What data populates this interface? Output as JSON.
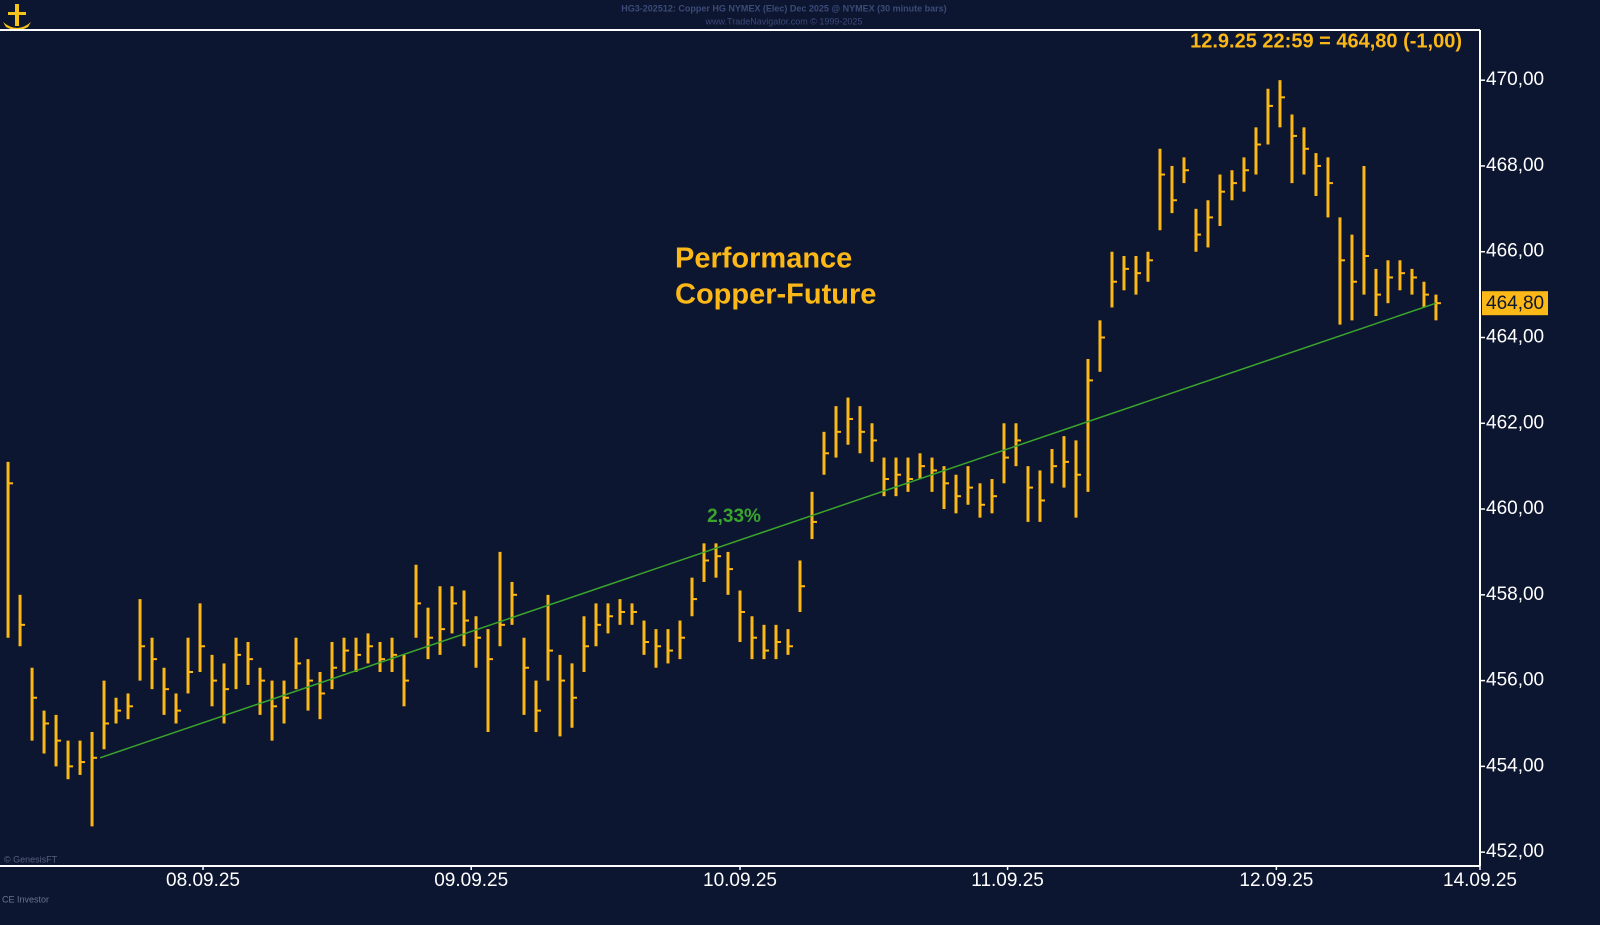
{
  "chart_data": {
    "type": "hlc",
    "header": [
      "HG3-202512:  Copper HG NYMEX (Elec) Dec 2025 @ NYMEX  (30 minute bars)",
      "www.TradeNavigator.com © 1999-2025"
    ],
    "readout": "12.9.25 22:59 = 464,80 (-1,00)",
    "title": [
      "Performance",
      "Copper-Future"
    ],
    "credits": [
      "© GenesisFT",
      "CE Investor"
    ],
    "color": "#fbb817",
    "high": [
      461.1,
      458.0,
      456.3,
      455.3,
      455.2,
      454.6,
      454.6,
      454.8,
      456.0,
      455.6,
      455.7,
      457.9,
      457.0,
      456.3,
      455.7,
      457.0,
      457.8,
      456.6,
      456.4,
      457.0,
      456.9,
      456.3,
      456.0,
      456.0,
      457.0,
      456.5,
      456.2,
      456.9,
      457.0,
      457.0,
      457.1,
      456.9,
      457.0,
      456.6,
      458.7,
      457.7,
      458.2,
      458.2,
      458.1,
      457.5,
      457.2,
      459.0,
      458.3,
      457.0,
      456.0,
      458.0,
      456.6,
      456.4,
      457.5,
      457.8,
      457.8,
      457.9,
      457.8,
      457.4,
      457.2,
      457.2,
      457.4,
      458.4,
      459.2,
      459.2,
      459.0,
      458.1,
      457.5,
      457.3,
      457.3,
      457.2,
      458.8,
      460.4,
      461.8,
      462.4,
      462.6,
      462.4,
      462.0,
      461.2,
      461.2,
      461.2,
      461.3,
      461.2,
      461.0,
      460.8,
      461.0,
      460.6,
      460.7,
      462.0,
      462.0,
      461.0,
      460.9,
      461.4,
      461.7,
      461.6,
      463.5,
      464.4,
      466.0,
      465.9,
      465.9,
      466.0,
      468.4,
      468.0,
      468.2,
      467.0,
      467.2,
      467.8,
      467.9,
      468.2,
      468.9,
      469.8,
      470.0,
      469.2,
      468.9,
      468.3,
      468.2,
      466.8,
      466.4,
      468.0,
      465.6,
      465.8,
      465.8,
      465.6,
      465.3,
      465.0
    ],
    "low": [
      457.0,
      456.8,
      454.6,
      454.3,
      454.0,
      453.7,
      453.8,
      452.6,
      454.4,
      455.0,
      455.1,
      456.0,
      455.8,
      455.2,
      455.0,
      455.7,
      456.2,
      455.4,
      455.0,
      455.8,
      455.9,
      455.2,
      454.6,
      455.0,
      455.8,
      455.3,
      455.1,
      455.8,
      456.2,
      456.2,
      456.4,
      456.2,
      456.2,
      455.4,
      457.0,
      456.5,
      456.6,
      457.1,
      456.8,
      456.3,
      454.8,
      456.8,
      457.3,
      455.2,
      454.8,
      456.0,
      454.7,
      454.9,
      456.2,
      456.8,
      457.1,
      457.3,
      457.3,
      456.6,
      456.3,
      456.4,
      456.5,
      457.5,
      458.3,
      458.4,
      458.0,
      456.9,
      456.5,
      456.5,
      456.5,
      456.6,
      457.6,
      459.3,
      460.8,
      461.2,
      461.5,
      461.3,
      461.1,
      460.3,
      460.3,
      460.4,
      460.7,
      460.4,
      460.0,
      459.9,
      460.1,
      459.8,
      459.9,
      460.6,
      461.0,
      459.7,
      459.7,
      460.6,
      460.5,
      459.8,
      460.4,
      463.2,
      464.7,
      465.1,
      465.0,
      465.3,
      466.5,
      466.9,
      467.6,
      466.0,
      466.1,
      466.6,
      467.2,
      467.4,
      467.8,
      468.5,
      468.9,
      467.6,
      467.8,
      467.3,
      466.8,
      464.3,
      464.4,
      465.0,
      464.5,
      464.8,
      465.1,
      465.0,
      464.7,
      464.4
    ],
    "close": [
      460.6,
      457.3,
      455.6,
      455.0,
      454.6,
      454.0,
      454.1,
      454.2,
      455.0,
      455.3,
      455.4,
      456.8,
      456.5,
      455.8,
      455.3,
      456.2,
      456.8,
      456.0,
      455.8,
      456.6,
      456.5,
      456.0,
      455.4,
      455.6,
      456.4,
      456.0,
      455.7,
      456.3,
      456.7,
      456.6,
      456.8,
      456.5,
      456.6,
      456.0,
      457.8,
      457.0,
      457.2,
      457.8,
      457.4,
      457.0,
      456.5,
      457.3,
      458.0,
      456.3,
      455.3,
      456.7,
      456.0,
      455.6,
      456.8,
      457.3,
      457.5,
      457.6,
      457.6,
      456.9,
      456.8,
      456.7,
      457.0,
      457.9,
      458.8,
      458.9,
      458.6,
      457.6,
      457.0,
      456.7,
      456.9,
      456.8,
      458.2,
      459.7,
      461.3,
      461.8,
      462.1,
      461.8,
      461.6,
      460.7,
      460.8,
      460.7,
      461.0,
      460.9,
      460.6,
      460.3,
      460.5,
      460.1,
      460.3,
      461.2,
      461.6,
      460.5,
      460.2,
      461.0,
      461.1,
      460.8,
      463.0,
      464.0,
      465.3,
      465.6,
      465.5,
      465.8,
      467.8,
      467.2,
      467.9,
      466.4,
      466.8,
      467.4,
      467.6,
      467.9,
      468.5,
      469.4,
      469.6,
      468.7,
      468.4,
      468.0,
      467.6,
      465.8,
      465.3,
      465.9,
      465.0,
      465.4,
      465.5,
      465.4,
      465.0,
      464.8
    ],
    "trend_line": {
      "label": "2,33%",
      "start": 454.2,
      "end": 464.8,
      "color": "#3aa52c"
    },
    "last_price": {
      "value": 464.8,
      "label": "464,80"
    },
    "ylim": [
      451.7,
      471.17
    ],
    "yticks": [
      {
        "value": 452,
        "label": "452,00"
      },
      {
        "value": 454,
        "label": "454,00"
      },
      {
        "value": 456,
        "label": "456,00"
      },
      {
        "value": 458,
        "label": "458,00"
      },
      {
        "value": 460,
        "label": "460,00"
      },
      {
        "value": 462,
        "label": "462,00"
      },
      {
        "value": 464,
        "label": "464,00"
      },
      {
        "value": 466,
        "label": "466,00"
      },
      {
        "value": 468,
        "label": "468,00"
      },
      {
        "value": 470,
        "label": "470,00"
      }
    ],
    "xlim": [
      -0.67,
      122.67
    ],
    "xticks": [
      {
        "value": 16.25,
        "label": "08.09.25"
      },
      {
        "value": 38.6,
        "label": "09.09.25"
      },
      {
        "value": 61,
        "label": "10.09.25"
      },
      {
        "value": 83.3,
        "label": "11.09.25"
      },
      {
        "value": 105.7,
        "label": "12.09.25"
      },
      {
        "value": 122.67,
        "label": "14.09.25"
      }
    ]
  }
}
